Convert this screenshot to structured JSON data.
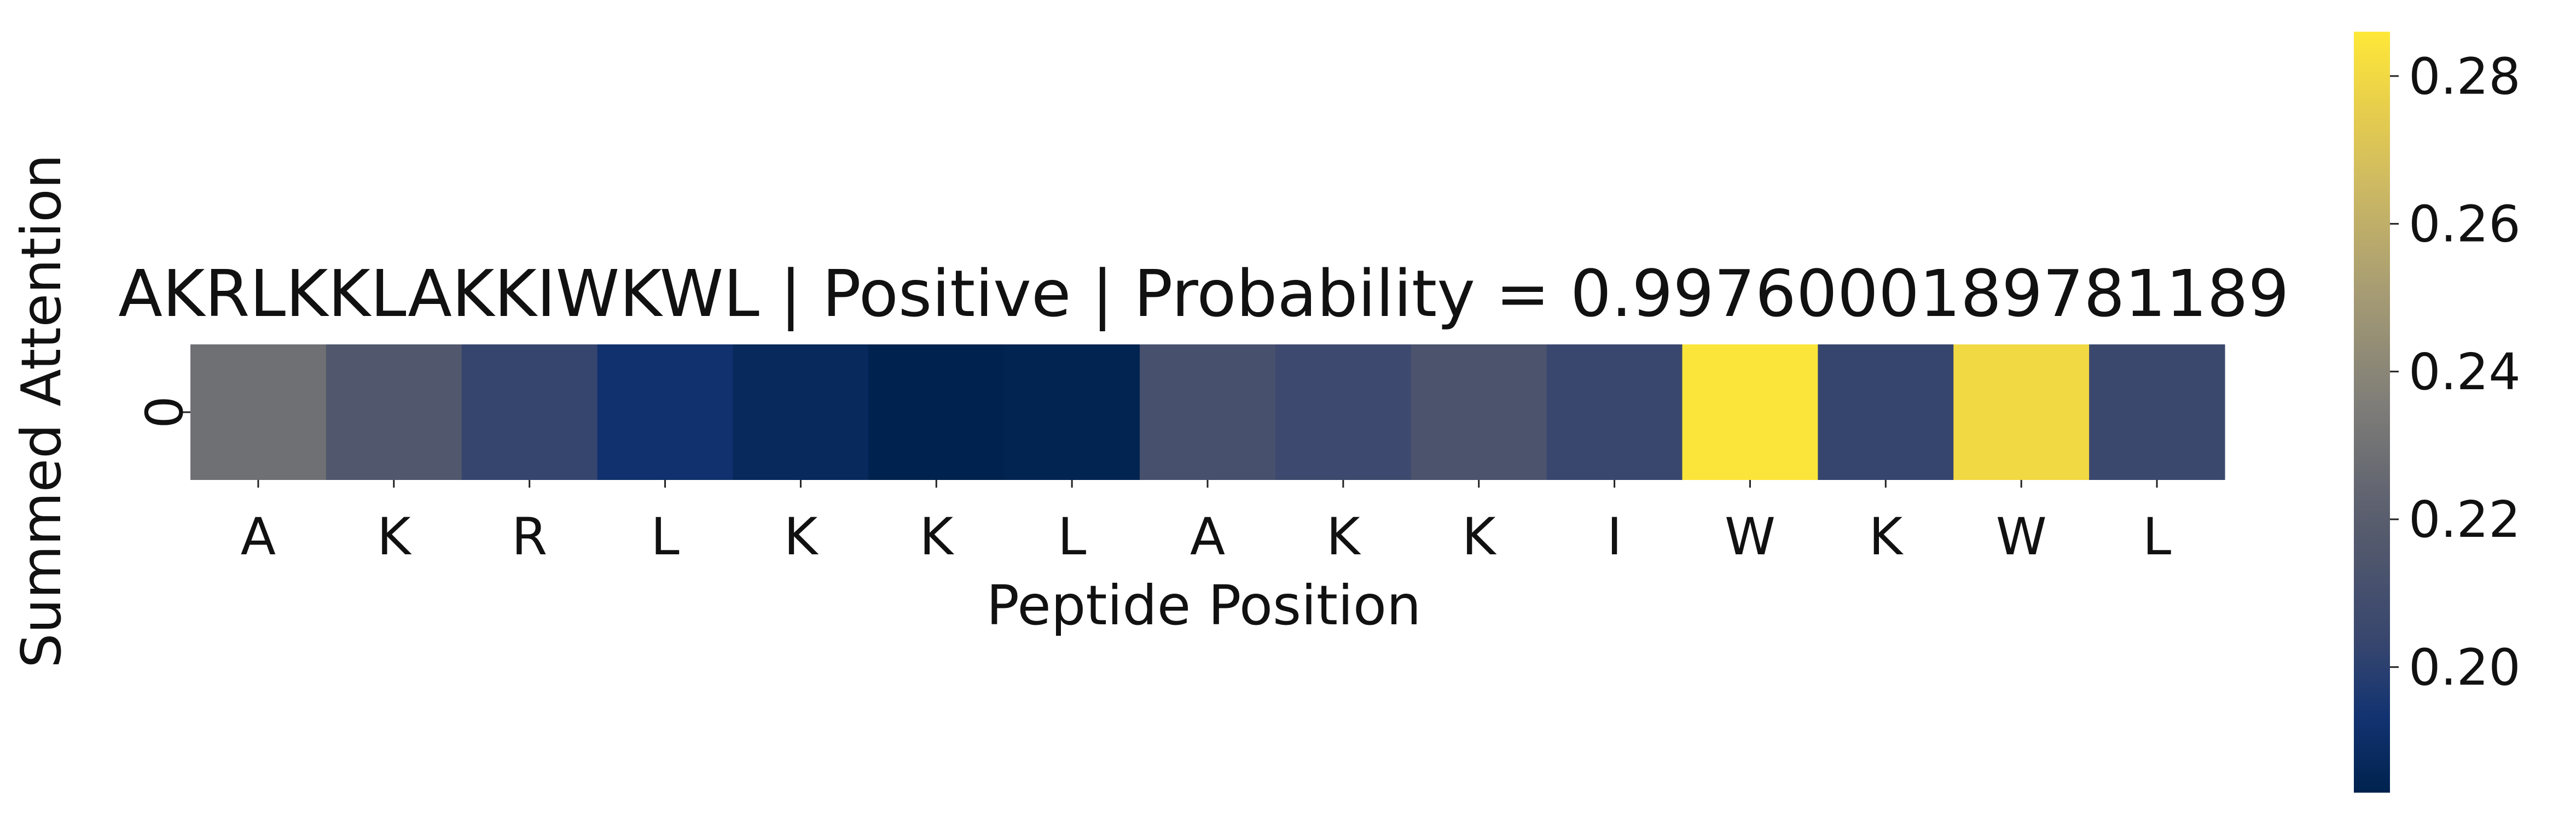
{
  "chart_data": {
    "type": "heatmap",
    "title": "AKRLKKLAKKIWKWL | Positive | Probability = 0.9976000189781189",
    "xlabel": "Peptide Position",
    "ylabel": "Summed Attention",
    "x_categories": [
      "A",
      "K",
      "R",
      "L",
      "K",
      "K",
      "L",
      "A",
      "K",
      "K",
      "I",
      "W",
      "K",
      "W",
      "L"
    ],
    "y_categories": [
      "0"
    ],
    "values": [
      [
        0.229,
        0.216,
        0.203,
        0.192,
        0.187,
        0.183,
        0.184,
        0.211,
        0.206,
        0.213,
        0.204,
        0.285,
        0.203,
        0.28,
        0.205
      ]
    ],
    "colormap": "cividis",
    "colorbar": {
      "min": 0.183,
      "max": 0.286,
      "ticks": [
        "0.20",
        "0.22",
        "0.24",
        "0.26",
        "0.28"
      ]
    },
    "grid": false,
    "legend": "none"
  }
}
